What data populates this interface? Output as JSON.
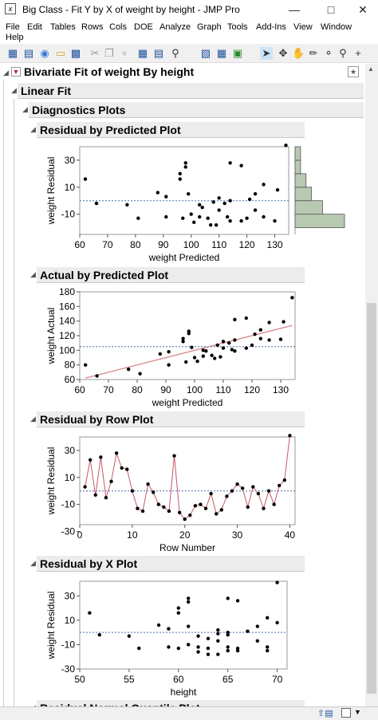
{
  "window": {
    "title": "Big Class - Fit Y by X of weight by height - JMP Pro",
    "app_icon": "jmp-icon",
    "buttons": [
      "minimize-icon",
      "maximize-icon",
      "close-icon"
    ]
  },
  "menu": [
    "File",
    "Edit",
    "Tables",
    "Rows",
    "Cols",
    "DOE",
    "Analyze",
    "Graph",
    "Tools",
    "Add-Ins",
    "View",
    "Window",
    "Help"
  ],
  "toolbar": {
    "icons": [
      "new-table-icon",
      "new-script-icon",
      "python-icon",
      "open-icon",
      "save-icon",
      "cut-icon",
      "copy-icon",
      "paste-icon",
      "data-table-icon",
      "journal-icon",
      "search-icon",
      "chart-icon",
      "table-icon",
      "add-icon",
      "arrow-icon",
      "crosshair-icon",
      "hand-icon",
      "brush-icon",
      "lasso-icon",
      "magnifier-icon",
      "plus-icon"
    ]
  },
  "report": {
    "bivariate_title": "Bivariate Fit of weight By height",
    "linear_fit": "Linear Fit",
    "diagnostics": "Diagnostics Plots",
    "next_section_title": "Residual Normal Quantile Plot"
  },
  "chart_data": [
    {
      "type": "scatter",
      "title": "Residual by Predicted Plot",
      "xlabel": "weight Predicted",
      "ylabel": "weight Residual",
      "xlim": [
        60,
        135
      ],
      "ylim": [
        -25,
        40
      ],
      "xticks": [
        60,
        70,
        80,
        90,
        100,
        110,
        120,
        130
      ],
      "yticks": [
        -10,
        10,
        30
      ],
      "reference_line": 0,
      "points": [
        [
          62,
          16
        ],
        [
          66,
          -2
        ],
        [
          77,
          -3
        ],
        [
          81,
          -13
        ],
        [
          88,
          6
        ],
        [
          91,
          3
        ],
        [
          91,
          -12
        ],
        [
          96,
          16
        ],
        [
          96,
          20
        ],
        [
          98,
          25
        ],
        [
          98,
          28
        ],
        [
          99,
          5
        ],
        [
          100,
          -10
        ],
        [
          97,
          -13
        ],
        [
          101,
          -16
        ],
        [
          103,
          -3
        ],
        [
          103,
          -12
        ],
        [
          104,
          -5
        ],
        [
          106,
          -13
        ],
        [
          107,
          -18
        ],
        [
          108,
          -1
        ],
        [
          109,
          -18
        ],
        [
          110,
          2
        ],
        [
          110,
          -7
        ],
        [
          112,
          -2
        ],
        [
          113,
          -12
        ],
        [
          114,
          28
        ],
        [
          114,
          0
        ],
        [
          114,
          -15
        ],
        [
          118,
          26
        ],
        [
          118,
          -15
        ],
        [
          121,
          1
        ],
        [
          123,
          5
        ],
        [
          123,
          -7
        ],
        [
          126,
          12
        ],
        [
          126,
          -12
        ],
        [
          131,
          8
        ],
        [
          130,
          -15
        ],
        [
          134,
          41
        ],
        [
          120,
          -13
        ]
      ],
      "histogram": {
        "bins": [
          -20,
          -10,
          0,
          10,
          20,
          30
        ],
        "counts": [
          9,
          5,
          3,
          2,
          1,
          1
        ]
      }
    },
    {
      "type": "scatter",
      "title": "Actual by Predicted Plot",
      "xlabel": "weight Predicted",
      "ylabel": "weight Actual",
      "xlim": [
        60,
        135
      ],
      "ylim": [
        60,
        180
      ],
      "xticks": [
        60,
        70,
        80,
        90,
        100,
        110,
        120,
        130
      ],
      "yticks": [
        60,
        80,
        100,
        120,
        140,
        160,
        180
      ],
      "reference_line": 105,
      "fit_line": [
        [
          62,
          62
        ],
        [
          134,
          134
        ]
      ],
      "points": [
        [
          62,
          80
        ],
        [
          66,
          65
        ],
        [
          77,
          74
        ],
        [
          81,
          68
        ],
        [
          88,
          95
        ],
        [
          91,
          98
        ],
        [
          91,
          80
        ],
        [
          96,
          112
        ],
        [
          96,
          116
        ],
        [
          98,
          123
        ],
        [
          98,
          126
        ],
        [
          99,
          104
        ],
        [
          100,
          90
        ],
        [
          97,
          84
        ],
        [
          101,
          85
        ],
        [
          103,
          100
        ],
        [
          103,
          92
        ],
        [
          104,
          99
        ],
        [
          106,
          93
        ],
        [
          107,
          89
        ],
        [
          108,
          107
        ],
        [
          109,
          91
        ],
        [
          110,
          112
        ],
        [
          110,
          103
        ],
        [
          112,
          110
        ],
        [
          113,
          101
        ],
        [
          114,
          142
        ],
        [
          114,
          114
        ],
        [
          114,
          99
        ],
        [
          118,
          144
        ],
        [
          118,
          103
        ],
        [
          121,
          122
        ],
        [
          123,
          128
        ],
        [
          123,
          116
        ],
        [
          126,
          138
        ],
        [
          126,
          114
        ],
        [
          131,
          139
        ],
        [
          130,
          115
        ],
        [
          134,
          172
        ],
        [
          120,
          107
        ]
      ]
    },
    {
      "type": "line",
      "title": "Residual by Row Plot",
      "xlabel": "Row Number",
      "ylabel": "weight Residual",
      "xlim": [
        0,
        41
      ],
      "ylim": [
        -25,
        40
      ],
      "xticks": [
        0,
        10,
        20,
        30,
        40
      ],
      "yticks": [
        -30,
        -10,
        10,
        30
      ],
      "reference_line": 0,
      "x": [
        1,
        2,
        3,
        4,
        5,
        6,
        7,
        8,
        9,
        10,
        11,
        12,
        13,
        14,
        15,
        16,
        17,
        18,
        19,
        20,
        21,
        22,
        23,
        24,
        25,
        26,
        27,
        28,
        29,
        30,
        31,
        32,
        33,
        34,
        35,
        36,
        37,
        38,
        39,
        40
      ],
      "y": [
        3,
        23,
        -3,
        25,
        -5,
        7,
        28,
        17,
        16,
        0,
        -13,
        -15,
        5,
        -1,
        -10,
        -12,
        -15,
        26,
        -16,
        -21,
        -18,
        -11,
        -10,
        -13,
        -2,
        -17,
        -14,
        -4,
        0,
        5,
        2,
        -12,
        3,
        -2,
        -13,
        0,
        -10,
        4,
        8,
        41
      ]
    },
    {
      "type": "scatter",
      "title": "Residual by X Plot",
      "xlabel": "height",
      "ylabel": "weight Residual",
      "xlim": [
        50,
        71
      ],
      "ylim": [
        -30,
        42
      ],
      "xticks": [
        50,
        55,
        60,
        65,
        70
      ],
      "yticks": [
        -30,
        -10,
        10,
        30
      ],
      "reference_line": 0,
      "points": [
        [
          51,
          16
        ],
        [
          52,
          -2
        ],
        [
          55,
          -3
        ],
        [
          56,
          -13
        ],
        [
          58,
          6
        ],
        [
          59,
          3
        ],
        [
          59,
          -12
        ],
        [
          60,
          16
        ],
        [
          60,
          20
        ],
        [
          61,
          25
        ],
        [
          61,
          28
        ],
        [
          61,
          5
        ],
        [
          61,
          -10
        ],
        [
          60,
          -13
        ],
        [
          62,
          -16
        ],
        [
          62,
          -3
        ],
        [
          62,
          -12
        ],
        [
          63,
          -5
        ],
        [
          63,
          -13
        ],
        [
          63,
          -18
        ],
        [
          64,
          -1
        ],
        [
          64,
          -18
        ],
        [
          64,
          2
        ],
        [
          64,
          -7
        ],
        [
          65,
          -2
        ],
        [
          65,
          -12
        ],
        [
          65,
          28
        ],
        [
          65,
          0
        ],
        [
          65,
          -15
        ],
        [
          66,
          26
        ],
        [
          66,
          -15
        ],
        [
          67,
          1
        ],
        [
          68,
          5
        ],
        [
          68,
          -7
        ],
        [
          69,
          12
        ],
        [
          69,
          -12
        ],
        [
          70,
          8
        ],
        [
          69,
          -15
        ],
        [
          70,
          41
        ],
        [
          66,
          -13
        ]
      ]
    }
  ],
  "colors": {
    "fit_line": "#d9828a",
    "row_line": "#c45a66",
    "reference": "#4a6fa5",
    "histogram": "#b8c9b2"
  }
}
